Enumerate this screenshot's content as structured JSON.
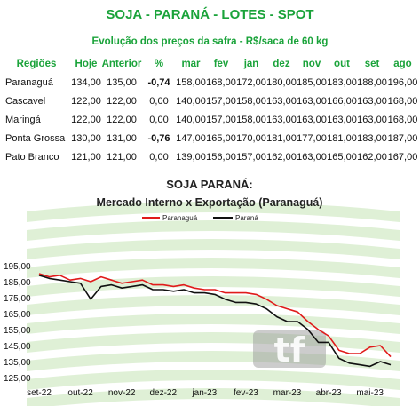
{
  "header": {
    "title": "SOJA - PARANÁ - LOTES - SPOT",
    "subtitle": "Evolução dos preços da safra - R$/saca de 60 kg"
  },
  "table": {
    "columns": [
      "Regiões",
      "Hoje",
      "Anterior",
      "%",
      "mar",
      "fev",
      "jan",
      "dez",
      "nov",
      "out",
      "set",
      "ago"
    ],
    "rows": [
      {
        "region": "Paranaguá",
        "hoje": "134,00",
        "anterior": "135,00",
        "pct": "-0,74",
        "months": [
          "158,00",
          "168,00",
          "172,00",
          "180,00",
          "185,00",
          "183,00",
          "188,00",
          "196,00"
        ]
      },
      {
        "region": "Cascavel",
        "hoje": "122,00",
        "anterior": "122,00",
        "pct": "0,00",
        "months": [
          "140,00",
          "157,00",
          "158,00",
          "163,00",
          "163,00",
          "166,00",
          "163,00",
          "168,00"
        ]
      },
      {
        "region": "Maringá",
        "hoje": "122,00",
        "anterior": "122,00",
        "pct": "0,00",
        "months": [
          "140,00",
          "157,00",
          "158,00",
          "163,00",
          "163,00",
          "163,00",
          "163,00",
          "168,00"
        ]
      },
      {
        "region": "Ponta Grossa",
        "hoje": "130,00",
        "anterior": "131,00",
        "pct": "-0,76",
        "months": [
          "147,00",
          "165,00",
          "170,00",
          "181,00",
          "177,00",
          "181,00",
          "183,00",
          "187,00"
        ]
      },
      {
        "region": "Pato Branco",
        "hoje": "121,00",
        "anterior": "121,00",
        "pct": "0,00",
        "months": [
          "139,00",
          "156,00",
          "157,00",
          "162,00",
          "163,00",
          "165,00",
          "162,00",
          "167,00"
        ]
      }
    ]
  },
  "chart_data": {
    "type": "line",
    "title": "SOJA PARANÁ:",
    "subtitle": "Mercado Interno x Exportação (Paranaguá)",
    "xlabel": "",
    "ylabel": "",
    "ylim": [
      125,
      200
    ],
    "yticks": [
      "195,00",
      "185,00",
      "175,00",
      "165,00",
      "155,00",
      "145,00",
      "135,00",
      "125,00"
    ],
    "xticks": [
      "set-22",
      "out-22",
      "nov-22",
      "dez-22",
      "jan-23",
      "fev-23",
      "mar-23",
      "abr-23",
      "mai-23"
    ],
    "grid": false,
    "legend": "top-center",
    "watermark": "tf",
    "x": [
      0,
      0.25,
      0.5,
      0.75,
      1,
      1.25,
      1.5,
      1.75,
      2,
      2.25,
      2.5,
      2.75,
      3,
      3.25,
      3.5,
      3.75,
      4,
      4.25,
      4.5,
      4.75,
      5,
      5.25,
      5.5,
      5.75,
      6,
      6.25,
      6.5,
      6.75,
      7,
      7.25,
      7.5,
      7.75,
      8,
      8.25,
      8.5
    ],
    "series": [
      {
        "name": "Paranaguá",
        "color": "#e01b1b",
        "values": [
          190,
          188,
          189,
          186,
          187,
          185,
          188,
          186,
          184,
          185,
          186,
          183,
          183,
          182,
          183,
          181,
          180,
          180,
          178,
          178,
          178,
          177,
          174,
          170,
          168,
          166,
          160,
          155,
          151,
          142,
          140,
          140,
          144,
          145,
          138
        ]
      },
      {
        "name": "Paraná",
        "color": "#111111",
        "values": [
          189,
          187,
          186,
          185,
          184,
          174,
          182,
          183,
          181,
          182,
          183,
          180,
          180,
          179,
          180,
          178,
          178,
          177,
          174,
          172,
          172,
          171,
          168,
          163,
          160,
          160,
          155,
          147,
          147,
          137,
          134,
          133,
          132,
          135,
          133
        ]
      }
    ]
  }
}
